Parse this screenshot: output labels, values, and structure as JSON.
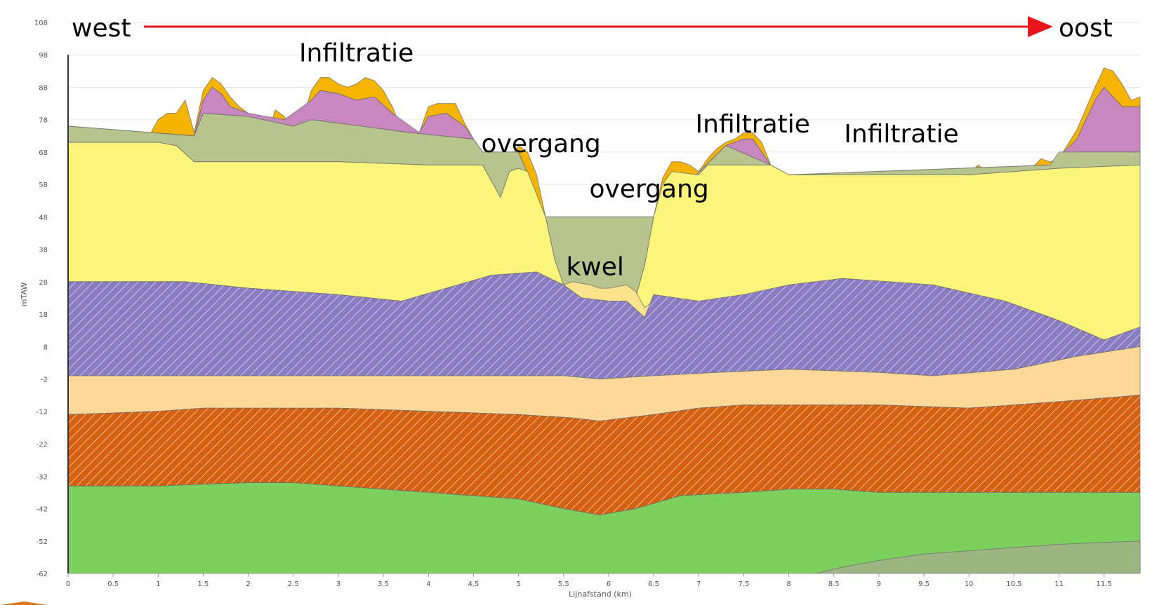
{
  "chart_data": {
    "type": "area",
    "title": "",
    "xlabel": "Lijnafstand (km)",
    "ylabel": "mTAW",
    "xlim": [
      0,
      11.9
    ],
    "ylim": [
      -62,
      108
    ],
    "grid": true,
    "xticks": [
      0,
      0.5,
      1,
      1.5,
      2,
      2.5,
      3,
      3.5,
      4,
      4.5,
      5,
      5.5,
      6,
      6.5,
      7,
      7.5,
      8,
      8.5,
      9,
      9.5,
      10,
      10.5,
      11,
      11.5
    ],
    "yticks": [
      108,
      98,
      88,
      78,
      68,
      58,
      48,
      38,
      28,
      18,
      8,
      -2,
      -12,
      -22,
      -32,
      -42,
      -52,
      -62
    ],
    "colors": {
      "orange": "#F5B400",
      "pink": "#C987C0",
      "olive": "#B8C48E",
      "yellow": "#FBF57C",
      "pale_yellow": "#FAE38C",
      "purple": "#8A7CC2",
      "peach": "#FDD89B",
      "brown": "#D5600F",
      "green": "#7ED05E",
      "grey_green": "#9DB483",
      "arrow": "#E8141B"
    },
    "top_surface": [
      [
        0,
        76
      ],
      [
        0.2,
        75
      ],
      [
        0.4,
        70
      ],
      [
        0.5,
        69
      ],
      [
        0.6,
        68
      ],
      [
        0.7,
        63
      ],
      [
        0.8,
        69
      ],
      [
        0.9,
        73
      ],
      [
        1.0,
        78
      ],
      [
        1.1,
        80
      ],
      [
        1.2,
        80
      ],
      [
        1.3,
        84
      ],
      [
        1.4,
        74
      ],
      [
        1.5,
        87
      ],
      [
        1.6,
        91
      ],
      [
        1.7,
        89
      ],
      [
        1.8,
        85
      ],
      [
        1.9,
        82
      ],
      [
        2.0,
        80
      ],
      [
        2.1,
        77
      ],
      [
        2.2,
        72
      ],
      [
        2.3,
        81
      ],
      [
        2.4,
        79
      ],
      [
        2.5,
        73
      ],
      [
        2.6,
        78
      ],
      [
        2.7,
        87
      ],
      [
        2.8,
        91
      ],
      [
        2.9,
        91
      ],
      [
        3.0,
        89
      ],
      [
        3.1,
        88
      ],
      [
        3.2,
        89
      ],
      [
        3.3,
        91
      ],
      [
        3.4,
        90
      ],
      [
        3.5,
        87
      ],
      [
        3.6,
        82
      ],
      [
        3.7,
        75
      ],
      [
        3.8,
        74
      ],
      [
        3.9,
        74
      ],
      [
        4.0,
        82
      ],
      [
        4.1,
        83
      ],
      [
        4.2,
        83
      ],
      [
        4.3,
        83
      ],
      [
        4.4,
        77
      ],
      [
        4.5,
        72
      ],
      [
        4.6,
        68
      ],
      [
        4.7,
        58
      ],
      [
        4.8,
        54
      ],
      [
        4.9,
        66
      ],
      [
        5.0,
        70
      ],
      [
        5.1,
        68
      ],
      [
        5.2,
        61
      ],
      [
        5.3,
        48
      ],
      [
        5.4,
        35
      ],
      [
        5.5,
        27
      ],
      [
        5.6,
        20
      ],
      [
        5.7,
        18
      ],
      [
        5.8,
        18
      ],
      [
        5.9,
        17
      ],
      [
        6.0,
        17
      ],
      [
        6.1,
        17
      ],
      [
        6.2,
        17
      ],
      [
        6.3,
        23
      ],
      [
        6.4,
        33
      ],
      [
        6.5,
        48
      ],
      [
        6.6,
        60
      ],
      [
        6.7,
        65
      ],
      [
        6.8,
        65
      ],
      [
        6.9,
        64
      ],
      [
        7.0,
        62
      ],
      [
        7.1,
        66
      ],
      [
        7.2,
        69
      ],
      [
        7.3,
        71
      ],
      [
        7.4,
        72
      ],
      [
        7.5,
        74
      ],
      [
        7.6,
        74
      ],
      [
        7.7,
        71
      ],
      [
        7.8,
        64
      ],
      [
        7.9,
        62
      ],
      [
        8.0,
        61
      ],
      [
        8.2,
        60
      ],
      [
        8.4,
        60
      ],
      [
        8.6,
        61
      ],
      [
        8.8,
        60
      ],
      [
        9.0,
        60
      ],
      [
        9.2,
        59
      ],
      [
        9.4,
        61
      ],
      [
        9.6,
        62
      ],
      [
        9.8,
        60
      ],
      [
        10.0,
        61
      ],
      [
        10.1,
        64
      ],
      [
        10.2,
        62
      ],
      [
        10.3,
        56
      ],
      [
        10.4,
        58
      ],
      [
        10.5,
        61
      ],
      [
        10.6,
        63
      ],
      [
        10.7,
        63
      ],
      [
        10.8,
        66
      ],
      [
        10.9,
        65
      ],
      [
        11.0,
        66
      ],
      [
        11.2,
        75
      ],
      [
        11.4,
        88
      ],
      [
        11.5,
        94
      ],
      [
        11.6,
        93
      ],
      [
        11.7,
        89
      ],
      [
        11.8,
        84
      ],
      [
        11.9,
        85
      ]
    ],
    "layers": [
      {
        "key": "orange",
        "hatched": false,
        "top": "top_surface",
        "bottom": "pink_top"
      },
      {
        "key": "pink",
        "hatched": false,
        "top": "pink_top",
        "bottom": "olive_top"
      },
      {
        "key": "olive",
        "hatched": false,
        "top": "olive_top",
        "bottom": "yellow_top"
      },
      {
        "key": "yellow",
        "hatched": false,
        "top": "yellow_top",
        "bottom": "purple_top"
      },
      {
        "key": "pale_yellow",
        "hatched": false,
        "top": "kwel_top",
        "bottom": "purple_top"
      },
      {
        "key": "purple",
        "hatched": true,
        "top": "purple_top",
        "bottom": "peach_top"
      },
      {
        "key": "peach",
        "hatched": false,
        "top": "peach_top",
        "bottom": "brown_top"
      },
      {
        "key": "brown",
        "hatched": true,
        "top": "brown_top",
        "bottom": "green_top"
      },
      {
        "key": "green",
        "hatched": false,
        "top": "green_top",
        "bottom": "floor"
      },
      {
        "key": "grey_green",
        "hatched": false,
        "top": "deep_top",
        "bottom": "floor"
      }
    ],
    "surfaces": {
      "pink_top": [
        [
          0,
          76
        ],
        [
          1.4,
          73
        ],
        [
          1.5,
          84
        ],
        [
          1.6,
          88
        ],
        [
          1.7,
          86
        ],
        [
          1.8,
          82
        ],
        [
          2.0,
          80
        ],
        [
          2.4,
          78
        ],
        [
          2.7,
          84
        ],
        [
          2.8,
          87
        ],
        [
          3.0,
          86
        ],
        [
          3.2,
          84
        ],
        [
          3.4,
          85
        ],
        [
          3.6,
          80
        ],
        [
          3.9,
          74
        ],
        [
          4.0,
          79
        ],
        [
          4.2,
          80
        ],
        [
          4.4,
          76
        ],
        [
          4.6,
          68
        ],
        [
          5.0,
          68
        ],
        [
          5.3,
          48
        ],
        [
          6.5,
          48
        ],
        [
          7.3,
          70
        ],
        [
          7.5,
          72
        ],
        [
          7.6,
          72
        ],
        [
          7.8,
          64
        ],
        [
          8.0,
          61
        ],
        [
          10.9,
          64
        ],
        [
          11.2,
          72
        ],
        [
          11.4,
          84
        ],
        [
          11.5,
          88
        ],
        [
          11.7,
          82
        ],
        [
          11.9,
          82
        ]
      ],
      "olive_top": [
        [
          0,
          76
        ],
        [
          1.4,
          73
        ],
        [
          1.5,
          80
        ],
        [
          2.0,
          79
        ],
        [
          2.5,
          76
        ],
        [
          2.7,
          78
        ],
        [
          3.8,
          74
        ],
        [
          4.5,
          72
        ],
        [
          4.6,
          68
        ],
        [
          5.0,
          68
        ],
        [
          5.3,
          48
        ],
        [
          6.5,
          48
        ],
        [
          7.3,
          70
        ],
        [
          7.8,
          64
        ],
        [
          8.0,
          61
        ],
        [
          10.9,
          64
        ],
        [
          11.0,
          68
        ],
        [
          11.9,
          68
        ]
      ],
      "yellow_top": [
        [
          0,
          71
        ],
        [
          1.0,
          71
        ],
        [
          1.2,
          70
        ],
        [
          1.4,
          65
        ],
        [
          2.0,
          65
        ],
        [
          3.0,
          65
        ],
        [
          4.0,
          64
        ],
        [
          4.6,
          64
        ],
        [
          4.8,
          54
        ],
        [
          4.9,
          62
        ],
        [
          5.0,
          63
        ],
        [
          5.1,
          62
        ],
        [
          5.3,
          48
        ],
        [
          5.4,
          35
        ],
        [
          5.5,
          27
        ],
        [
          5.6,
          20
        ],
        [
          5.7,
          18
        ],
        [
          6.3,
          23
        ],
        [
          6.4,
          33
        ],
        [
          6.5,
          48
        ],
        [
          6.6,
          58
        ],
        [
          6.7,
          62
        ],
        [
          7.0,
          61
        ],
        [
          7.1,
          64
        ],
        [
          7.8,
          64
        ],
        [
          8.0,
          61
        ],
        [
          10.0,
          61
        ],
        [
          10.5,
          62
        ],
        [
          11.0,
          63
        ],
        [
          11.9,
          64
        ]
      ],
      "kwel_top": [
        [
          5.5,
          27
        ],
        [
          5.6,
          28
        ],
        [
          5.8,
          27
        ],
        [
          5.9,
          26
        ],
        [
          6.0,
          26
        ],
        [
          6.2,
          27
        ],
        [
          6.3,
          25
        ],
        [
          6.4,
          20
        ],
        [
          6.5,
          22
        ]
      ],
      "purple_top": [
        [
          0,
          28
        ],
        [
          1.3,
          28
        ],
        [
          2.0,
          26
        ],
        [
          3.0,
          24
        ],
        [
          3.7,
          22
        ],
        [
          4.2,
          26
        ],
        [
          4.7,
          30
        ],
        [
          5.2,
          31
        ],
        [
          5.5,
          27
        ],
        [
          5.7,
          23
        ],
        [
          6.0,
          22
        ],
        [
          6.2,
          22
        ],
        [
          6.4,
          17
        ],
        [
          6.5,
          24
        ],
        [
          7.0,
          22
        ],
        [
          7.5,
          24
        ],
        [
          8.0,
          27
        ],
        [
          8.6,
          29
        ],
        [
          9.6,
          27
        ],
        [
          10.4,
          22
        ],
        [
          11.0,
          16
        ],
        [
          11.5,
          10
        ],
        [
          11.9,
          14
        ]
      ],
      "peach_top": [
        [
          0,
          -1
        ],
        [
          1.0,
          -1
        ],
        [
          2.0,
          -1
        ],
        [
          3.0,
          -1
        ],
        [
          4.0,
          -1
        ],
        [
          5.0,
          -1
        ],
        [
          5.5,
          -1
        ],
        [
          5.9,
          -2
        ],
        [
          6.5,
          -1
        ],
        [
          7.2,
          0
        ],
        [
          8.0,
          1
        ],
        [
          9.0,
          0
        ],
        [
          9.6,
          -1
        ],
        [
          10.5,
          1
        ],
        [
          11.2,
          5
        ],
        [
          11.9,
          8
        ]
      ],
      "brown_top": [
        [
          0,
          -13
        ],
        [
          1.0,
          -12
        ],
        [
          1.5,
          -11
        ],
        [
          2.0,
          -11
        ],
        [
          3.0,
          -11
        ],
        [
          4.0,
          -12
        ],
        [
          5.0,
          -13
        ],
        [
          5.6,
          -14
        ],
        [
          5.9,
          -15
        ],
        [
          6.5,
          -13
        ],
        [
          7.0,
          -11
        ],
        [
          7.5,
          -10
        ],
        [
          8.0,
          -10
        ],
        [
          9.0,
          -10
        ],
        [
          10.0,
          -11
        ],
        [
          10.5,
          -10
        ],
        [
          11.0,
          -9
        ],
        [
          11.9,
          -7
        ]
      ],
      "green_top": [
        [
          0,
          -35
        ],
        [
          1.0,
          -35
        ],
        [
          2.0,
          -34
        ],
        [
          2.5,
          -34
        ],
        [
          3.0,
          -35
        ],
        [
          4.0,
          -37
        ],
        [
          5.0,
          -39
        ],
        [
          5.5,
          -42
        ],
        [
          5.9,
          -44
        ],
        [
          6.3,
          -42
        ],
        [
          6.8,
          -38
        ],
        [
          7.5,
          -37
        ],
        [
          8.0,
          -36
        ],
        [
          8.5,
          -36
        ],
        [
          9.0,
          -37
        ],
        [
          10.0,
          -37
        ],
        [
          11.0,
          -37
        ],
        [
          11.9,
          -37
        ]
      ],
      "deep_top": [
        [
          8.3,
          -62
        ],
        [
          8.6,
          -60
        ],
        [
          9.0,
          -58
        ],
        [
          9.5,
          -56
        ],
        [
          10.0,
          -55
        ],
        [
          10.5,
          -54
        ],
        [
          11.0,
          -53
        ],
        [
          11.9,
          -52
        ]
      ],
      "floor": [
        [
          0,
          -62
        ],
        [
          11.9,
          -62
        ]
      ]
    },
    "annotations": [
      {
        "text": "Infiltratie",
        "x": 3.2,
        "y": 96
      },
      {
        "text": "overgang",
        "x": 5.25,
        "y": 68
      },
      {
        "text": "overgang",
        "x": 6.45,
        "y": 54
      },
      {
        "text": "Infiltratie",
        "x": 7.6,
        "y": 74
      },
      {
        "text": "Infiltratie",
        "x": 9.25,
        "y": 71
      },
      {
        "text": "kwel",
        "x": 5.85,
        "y": 30
      }
    ],
    "direction": {
      "west": "west",
      "east": "oost"
    }
  }
}
